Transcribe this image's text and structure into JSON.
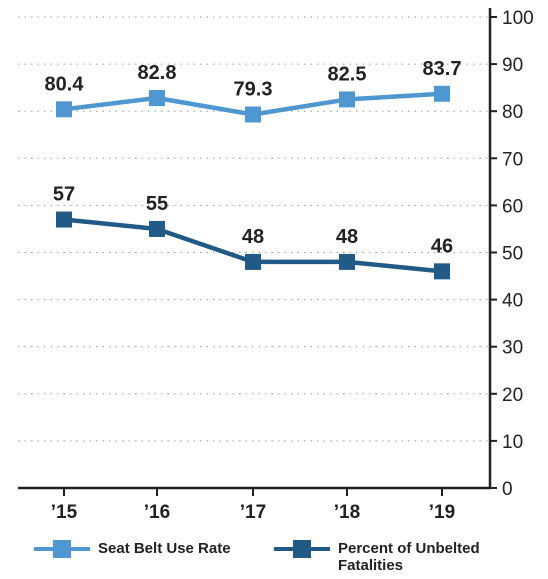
{
  "chart_data": {
    "type": "line",
    "categories": [
      "’15",
      "’16",
      "’17",
      "’18",
      "’19"
    ],
    "series": [
      {
        "name": "Seat Belt Use Rate",
        "values": [
          80.4,
          82.8,
          79.3,
          82.5,
          83.7
        ],
        "labels": [
          "80.4",
          "82.8",
          "79.3",
          "82.5",
          "83.7"
        ],
        "color": "#4f97d1"
      },
      {
        "name": "Percent of Unbelted Fatalities",
        "values": [
          57,
          55,
          48,
          48,
          46
        ],
        "labels": [
          "57",
          "55",
          "48",
          "48",
          "46"
        ],
        "color": "#215a86"
      }
    ],
    "ylim": [
      0,
      100
    ],
    "yticks": [
      "0",
      "10",
      "20",
      "30",
      "40",
      "50",
      "60",
      "70",
      "80",
      "90",
      "100"
    ],
    "y_axis_side": "right",
    "grid": "horizontal dotted",
    "legend_position": "bottom"
  }
}
